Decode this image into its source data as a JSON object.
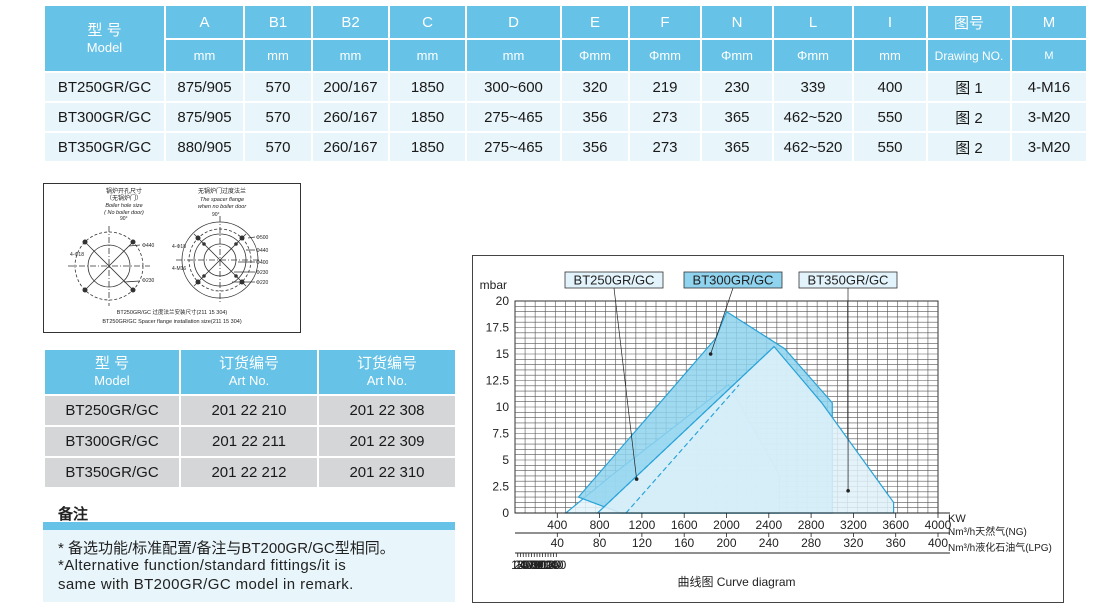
{
  "spec_table": {
    "header_row1": [
      "A",
      "B1",
      "B2",
      "C",
      "D",
      "E",
      "F",
      "N",
      "L",
      "I"
    ],
    "model_cn": "型    号",
    "model_en": "Model",
    "drawing_cn": "图号",
    "m_label": "M",
    "header_row2": [
      "mm",
      "mm",
      "mm",
      "mm",
      "mm",
      "Φmm",
      "Φmm",
      "Φmm",
      "Φmm",
      "mm",
      "Drawing NO.",
      "M"
    ],
    "rows": [
      [
        "BT250GR/GC",
        "875/905",
        "570",
        "200/167",
        "1850",
        "300~600",
        "320",
        "219",
        "230",
        "339",
        "400",
        "图 1",
        "4-M16"
      ],
      [
        "BT300GR/GC",
        "875/905",
        "570",
        "260/167",
        "1850",
        "275~465",
        "356",
        "273",
        "365",
        "462~520",
        "550",
        "图 2",
        "3-M20"
      ],
      [
        "BT350GR/GC",
        "880/905",
        "570",
        "260/167",
        "1850",
        "275~465",
        "356",
        "273",
        "365",
        "462~520",
        "550",
        "图 2",
        "3-M20"
      ]
    ]
  },
  "mount_drawing": {
    "left_title_cn": "锅炉开孔尺寸",
    "left_sub_cn": "（无锅炉门）",
    "left_title_en": "Boiler hole size",
    "left_sub_en": "( No boiler door)",
    "right_title_cn": "无锅炉门过度法兰",
    "right_title_en": "The spacer flange",
    "right_sub_en": "when no boiler door",
    "caption_cn": "BT250GR/GC 过度法兰安装尺寸(211 15 304)",
    "caption_en": "BT250GR/GC Spacer flange installation size(211 15 304)",
    "dims_left": [
      "Φ440",
      "Φ230"
    ],
    "dims_right": [
      "Φ500",
      "Φ440",
      "Φ400",
      "Φ230",
      "Φ220"
    ],
    "angle_left": "90°",
    "angle_right": "90°",
    "bolt_left": "4-Φ18",
    "bolt_right": "4-M16"
  },
  "order_table": {
    "model_cn": "型    号",
    "model_en": "Model",
    "col_cn": "订货编号",
    "col_en": "Art No.",
    "rows": [
      [
        "BT250GR/GC",
        "201 22 210",
        "201 22 308"
      ],
      [
        "BT300GR/GC",
        "201 22 211",
        "201 22 309"
      ],
      [
        "BT350GR/GC",
        "201 22 212",
        "201 22 310"
      ]
    ]
  },
  "remark": {
    "title": "备注",
    "line1": "* 备选功能/标准配置/备注与BT200GR/GC型相同。",
    "line2": "*Alternative function/standard fittings/it is",
    "line3": " same with BT200GR/GC model in remark."
  },
  "chart_data": {
    "type": "area",
    "title": "曲线图  Curve diagram",
    "ylabel": "mbar",
    "x_unit_kw": "KW",
    "x_unit_ng": "Nm³/h天然气(NG)",
    "x_unit_lpg": "Nm³/h液化石油气(LPG)",
    "ylim": [
      0,
      20
    ],
    "xlim": [
      0,
      4000
    ],
    "y_ticks": [
      "0",
      "2.5",
      "5",
      "7.5",
      "10",
      "12.5",
      "15",
      "17.5",
      "20"
    ],
    "kw_ticks": [
      "400",
      "800",
      "1200",
      "1600",
      "2000",
      "2400",
      "2800",
      "3200",
      "3600",
      "4000"
    ],
    "ng_ticks": [
      "40",
      "80",
      "120",
      "160",
      "200",
      "240",
      "280",
      "320",
      "360",
      "400"
    ],
    "lpg_ticks": [
      "10",
      "20",
      "30",
      "40",
      "50",
      "60",
      "70",
      "80",
      "90",
      "100",
      "110",
      "120",
      "130",
      "140",
      "150"
    ],
    "series": [
      {
        "name": "BT250GR/GC",
        "x": [
          480,
          920,
          2020,
          2500,
          2500,
          2120,
          1150,
          480
        ],
        "y": [
          0,
          3.6,
          12.1,
          3.6,
          0,
          0,
          0,
          0
        ],
        "color": "#e3f3fb"
      },
      {
        "name": "BT300GR/GC",
        "x": [
          600,
          1900,
          2000,
          2550,
          3000,
          3000,
          2550,
          2000,
          1000,
          600
        ],
        "y": [
          1.5,
          16.5,
          19,
          15.5,
          10.4,
          0,
          0,
          0,
          0,
          1.5
        ],
        "color": "#8fd3ef"
      },
      {
        "name": "BT350GR/GC",
        "x": [
          780,
          2450,
          2900,
          3580,
          3580,
          3000,
          780
        ],
        "y": [
          0,
          15.7,
          10.4,
          1,
          0,
          0,
          0
        ],
        "color": "#dff1f9"
      }
    ],
    "legend": [
      "BT250GR/GC",
      "BT300GR/GC",
      "BT350GR/GC"
    ]
  }
}
